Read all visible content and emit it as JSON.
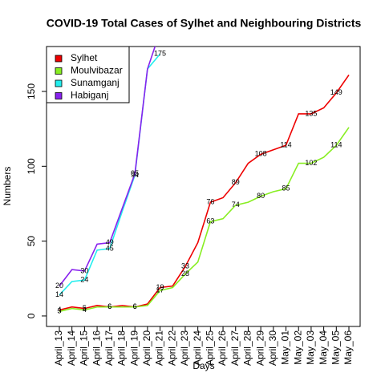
{
  "chart_data": {
    "type": "line",
    "title": "COVID-19 Total Cases of Sylhet and Neighbouring Districts",
    "xlabel": "Days",
    "ylabel": "Numbers",
    "categories": [
      "April_13",
      "April_14",
      "April_15",
      "April_16",
      "April_17",
      "April_18",
      "April_19",
      "April_20",
      "April_21",
      "April_22",
      "April_23",
      "April_24",
      "April_25",
      "April_26",
      "April_27",
      "April_28",
      "April_29",
      "April_30",
      "May_01",
      "May_02",
      "May_03",
      "May_04",
      "May_05",
      "May_06"
    ],
    "series": [
      {
        "name": "Sylhet",
        "color": "#ee0000",
        "values": [
          4,
          6,
          5,
          7,
          6,
          7,
          6,
          8,
          19,
          20,
          33,
          49,
          76,
          79,
          89,
          102,
          108,
          111,
          114,
          135,
          135,
          139,
          149,
          161
        ],
        "value_labels": [
          4,
          null,
          5,
          null,
          6,
          null,
          6,
          null,
          19,
          null,
          33,
          null,
          76,
          null,
          89,
          null,
          108,
          null,
          114,
          null,
          135,
          null,
          149,
          null
        ]
      },
      {
        "name": "Moulvibazar",
        "color": "#88ee22",
        "values": [
          3,
          5,
          4,
          6,
          6,
          6,
          6,
          7,
          17,
          19,
          28,
          36,
          63,
          65,
          74,
          76,
          80,
          83,
          85,
          102,
          102,
          106,
          114,
          126
        ],
        "value_labels": [
          3,
          null,
          4,
          null,
          6,
          null,
          6,
          null,
          17,
          null,
          28,
          null,
          63,
          null,
          74,
          null,
          80,
          null,
          85,
          null,
          102,
          null,
          114,
          null
        ]
      },
      {
        "name": "Sunamganj",
        "color": "#22eeee",
        "values": [
          14,
          23,
          24,
          44,
          45,
          70,
          94,
          165,
          175,
          null,
          null,
          null,
          null,
          null,
          null,
          null,
          null,
          null,
          null,
          null,
          null,
          null,
          null,
          null
        ],
        "value_labels": [
          14,
          null,
          24,
          null,
          45,
          null,
          94,
          null,
          175,
          null,
          null,
          null,
          null,
          null,
          null,
          null,
          null,
          null,
          null,
          null,
          null,
          null,
          null,
          null
        ]
      },
      {
        "name": "Habiganj",
        "color": "#8822ee",
        "values": [
          20,
          31,
          30,
          48,
          49,
          72,
          95,
          165,
          190,
          null,
          null,
          null,
          null,
          null,
          null,
          null,
          null,
          null,
          null,
          null,
          null,
          null,
          null,
          null
        ],
        "value_labels": [
          20,
          null,
          30,
          null,
          49,
          null,
          95,
          null,
          null,
          null,
          null,
          null,
          null,
          null,
          null,
          null,
          null,
          null,
          null,
          null,
          null,
          null,
          null,
          null
        ]
      }
    ],
    "ylim": [
      -7,
      180
    ],
    "yticks": [
      0,
      50,
      100,
      150
    ],
    "legend": "top-left"
  }
}
